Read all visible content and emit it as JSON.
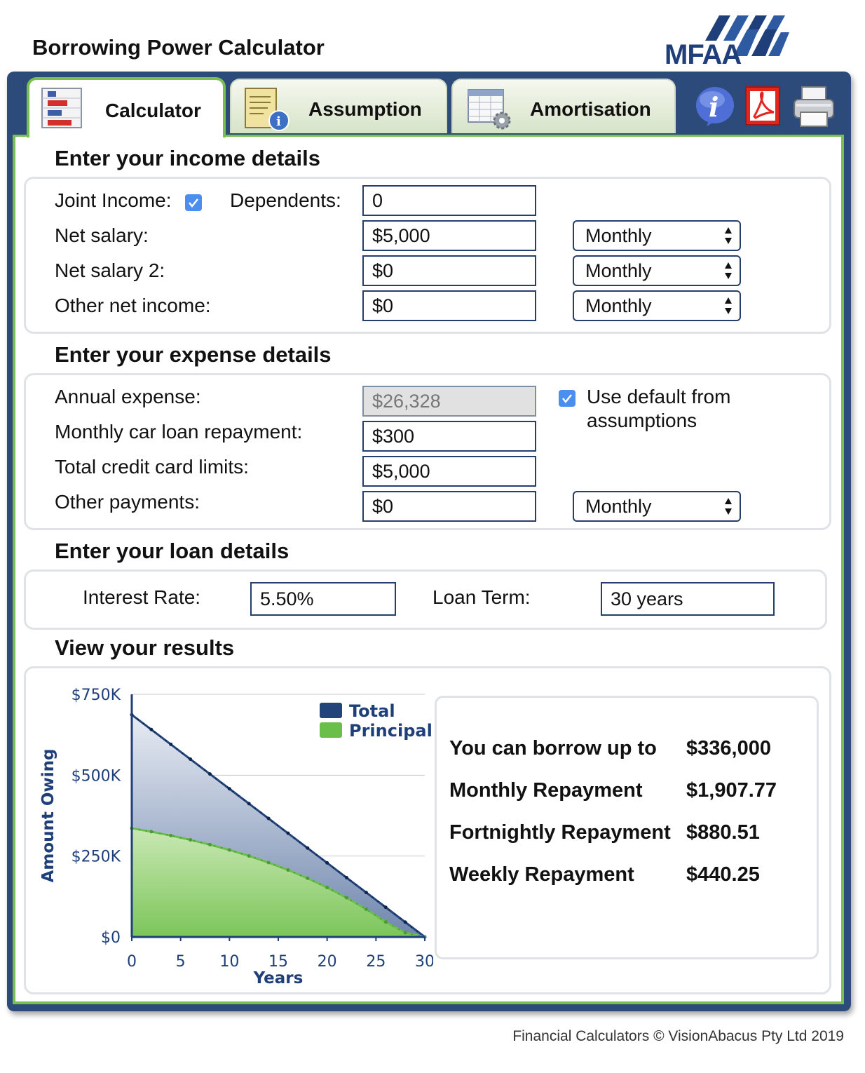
{
  "app": {
    "title": "Borrowing Power Calculator",
    "logo_text": "MFAA",
    "footer": "Financial Calculators © VisionAbacus Pty Ltd 2019"
  },
  "tabs": [
    {
      "label": "Calculator",
      "icon": "calculator-chart-icon",
      "active": true
    },
    {
      "label": "Assumption",
      "icon": "document-info-icon",
      "active": false
    },
    {
      "label": "Amortisation",
      "icon": "table-gear-icon",
      "active": false
    }
  ],
  "toolbar_icons": [
    "info-icon",
    "pdf-icon",
    "printer-icon"
  ],
  "income": {
    "title": "Enter your income details",
    "joint_label": "Joint Income:",
    "joint_checked": true,
    "dependents_label": "Dependents:",
    "dependents_value": "0",
    "net_salary_label": "Net salary:",
    "net_salary_value": "$5,000",
    "net_salary_freq": "Monthly",
    "net_salary2_label": "Net salary 2:",
    "net_salary2_value": "$0",
    "net_salary2_freq": "Monthly",
    "other_income_label": "Other net income:",
    "other_income_value": "$0",
    "other_income_freq": "Monthly"
  },
  "expense": {
    "title": "Enter your expense details",
    "annual_label": "Annual expense:",
    "annual_value": "$26,328",
    "default_checked": true,
    "default_label_1": "Use default from",
    "default_label_2": "assumptions",
    "car_label": "Monthly car loan repayment:",
    "car_value": "$300",
    "credit_label": "Total credit card limits:",
    "credit_value": "$5,000",
    "other_label": "Other payments:",
    "other_value": "$0",
    "other_freq": "Monthly"
  },
  "loan": {
    "title": "Enter your loan details",
    "rate_label": "Interest Rate:",
    "rate_value": "5.50%",
    "term_label": "Loan Term:",
    "term_value": "30 years"
  },
  "results": {
    "title": "View your results",
    "borrow_label": "You can borrow up to",
    "borrow_value": "$336,000",
    "monthly_label": "Monthly Repayment",
    "monthly_value": "$1,907.77",
    "fortnightly_label": "Fortnightly Repayment",
    "fortnightly_value": "$880.51",
    "weekly_label": "Weekly Repayment",
    "weekly_value": "$440.25"
  },
  "colors": {
    "frame": "#2c4a7a",
    "accent_green": "#78bf4f",
    "total_series": "#23447a",
    "principal_series": "#6abf4b"
  },
  "chart_data": {
    "type": "area",
    "xlabel": "Years",
    "ylabel": "Amount Owing",
    "xlim": [
      0,
      30
    ],
    "ylim": [
      0,
      750000
    ],
    "x_ticks": [
      0,
      5,
      10,
      15,
      20,
      25,
      30
    ],
    "y_ticks": [
      0,
      250000,
      500000,
      750000
    ],
    "y_tick_labels": [
      "$0",
      "$250K",
      "$500K",
      "$750K"
    ],
    "legend_position": "top-right",
    "grid": true,
    "x": [
      0,
      2,
      4,
      6,
      8,
      10,
      12,
      14,
      16,
      18,
      20,
      22,
      24,
      26,
      28,
      30
    ],
    "series": [
      {
        "name": "Total",
        "color": "#23447a",
        "values": [
          686800,
          641000,
          595200,
          549400,
          503600,
          457900,
          412100,
          366300,
          320500,
          274700,
          228900,
          183100,
          137400,
          91600,
          45800,
          0
        ]
      },
      {
        "name": "Principal",
        "color": "#6abf4b",
        "values": [
          336000,
          325300,
          313400,
          300100,
          285300,
          268800,
          250400,
          229800,
          206900,
          181400,
          152800,
          121100,
          85700,
          46200,
          13000,
          0
        ]
      }
    ]
  }
}
